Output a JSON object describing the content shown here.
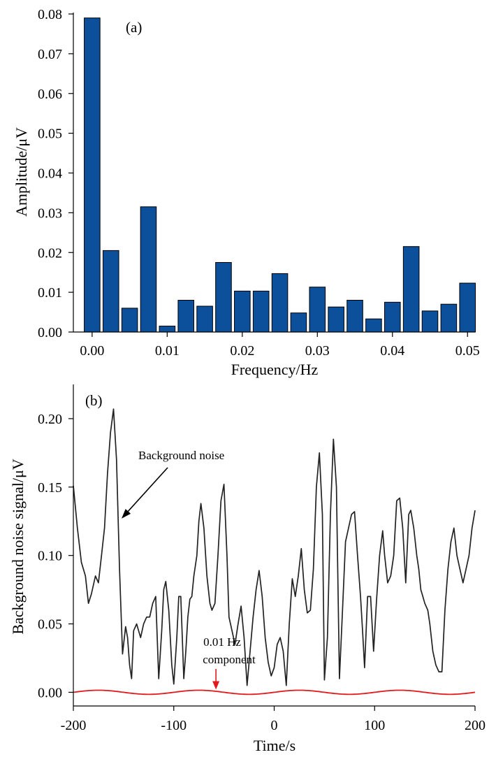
{
  "colors": {
    "bar_fill": "#0c4f9a",
    "bar_stroke": "#000000",
    "noise_line": "#222222",
    "component_line": "#e31a1c",
    "arrow_black": "#000000",
    "arrow_red": "#e31a1c"
  },
  "chart_data": [
    {
      "type": "bar",
      "panel_label": "(a)",
      "xlabel": "Frequency/Hz",
      "ylabel": "Amplitude/μV",
      "xlim": [
        -0.0025,
        0.051
      ],
      "ylim": [
        0,
        0.08
      ],
      "xticks": [
        0.0,
        0.01,
        0.02,
        0.03,
        0.04,
        0.05
      ],
      "xtick_labels": [
        "0.00",
        "0.01",
        "0.02",
        "0.03",
        "0.04",
        "0.05"
      ],
      "yticks": [
        0.0,
        0.01,
        0.02,
        0.03,
        0.04,
        0.05,
        0.06,
        0.07,
        0.08
      ],
      "ytick_labels": [
        "0.00",
        "0.01",
        "0.02",
        "0.03",
        "0.04",
        "0.05",
        "0.06",
        "0.07",
        "0.08"
      ],
      "bar_width": 0.0021,
      "x": [
        0.0,
        0.0025,
        0.005,
        0.0075,
        0.01,
        0.0125,
        0.015,
        0.0175,
        0.02,
        0.0225,
        0.025,
        0.0275,
        0.03,
        0.0325,
        0.035,
        0.0375,
        0.04,
        0.0425,
        0.045,
        0.0475,
        0.05
      ],
      "values": [
        0.079,
        0.0205,
        0.006,
        0.0315,
        0.0015,
        0.008,
        0.0065,
        0.0175,
        0.0103,
        0.0103,
        0.0147,
        0.0048,
        0.0113,
        0.0063,
        0.008,
        0.0033,
        0.0075,
        0.0215,
        0.0053,
        0.007,
        0.0123
      ]
    },
    {
      "type": "line",
      "panel_label": "(b)",
      "xlabel": "Time/s",
      "ylabel": "Background noise signal/μV",
      "xlim": [
        -200,
        200
      ],
      "ylim": [
        -0.01,
        0.225
      ],
      "xticks": [
        -200,
        -100,
        0,
        100,
        200
      ],
      "xtick_labels": [
        "-200",
        "-100",
        "0",
        "100",
        "200"
      ],
      "yticks": [
        0.0,
        0.05,
        0.1,
        0.15,
        0.2
      ],
      "ytick_labels": [
        "0.00",
        "0.05",
        "0.10",
        "0.15",
        "0.20"
      ],
      "series": [
        {
          "name": "Background noise",
          "x": [
            -200,
            -196,
            -192,
            -188,
            -185,
            -182,
            -178,
            -175,
            -172,
            -169,
            -166,
            -163,
            -160,
            -157,
            -154,
            -151,
            -148,
            -146,
            -144,
            -142,
            -140,
            -137,
            -135,
            -133,
            -130,
            -127,
            -124,
            -121,
            -118,
            -115,
            -112,
            -110,
            -108,
            -105,
            -102,
            -100,
            -97,
            -95,
            -93,
            -90,
            -88,
            -86,
            -84,
            -82,
            -80,
            -77,
            -75,
            -73,
            -70,
            -67,
            -64,
            -62,
            -59,
            -56,
            -53,
            -50,
            -47,
            -45,
            -42,
            -39,
            -36,
            -33,
            -30,
            -27,
            -24,
            -21,
            -18,
            -15,
            -12,
            -9,
            -6,
            -3,
            0,
            3,
            6,
            9,
            12,
            15,
            18,
            21,
            24,
            27,
            30,
            33,
            36,
            39,
            42,
            45,
            48,
            50,
            53,
            56,
            59,
            62,
            65,
            68,
            71,
            74,
            77,
            80,
            83,
            86,
            88,
            90,
            93,
            96,
            99,
            102,
            105,
            108,
            110,
            113,
            116,
            119,
            122,
            125,
            128,
            131,
            134,
            136,
            139,
            142,
            144,
            146,
            148,
            150,
            153,
            155,
            158,
            161,
            164,
            167,
            170,
            173,
            176,
            179,
            182,
            185,
            188,
            191,
            194,
            197,
            200
          ],
          "values": [
            0.151,
            0.12,
            0.095,
            0.085,
            0.065,
            0.072,
            0.085,
            0.08,
            0.1,
            0.12,
            0.16,
            0.19,
            0.207,
            0.17,
            0.09,
            0.028,
            0.048,
            0.04,
            0.02,
            0.01,
            0.045,
            0.05,
            0.045,
            0.04,
            0.05,
            0.055,
            0.055,
            0.065,
            0.07,
            0.01,
            0.045,
            0.075,
            0.081,
            0.06,
            0.02,
            0.006,
            0.04,
            0.07,
            0.07,
            0.01,
            0.03,
            0.055,
            0.068,
            0.07,
            0.085,
            0.1,
            0.125,
            0.138,
            0.12,
            0.085,
            0.065,
            0.06,
            0.065,
            0.1,
            0.14,
            0.152,
            0.1,
            0.055,
            0.045,
            0.035,
            0.05,
            0.063,
            0.04,
            0.005,
            0.03,
            0.055,
            0.075,
            0.089,
            0.07,
            0.04,
            0.022,
            0.012,
            0.018,
            0.035,
            0.04,
            0.03,
            0.005,
            0.05,
            0.083,
            0.07,
            0.085,
            0.105,
            0.075,
            0.058,
            0.06,
            0.09,
            0.15,
            0.175,
            0.13,
            0.009,
            0.04,
            0.13,
            0.185,
            0.15,
            0.01,
            0.06,
            0.11,
            0.12,
            0.13,
            0.132,
            0.1,
            0.07,
            0.045,
            0.018,
            0.07,
            0.07,
            0.03,
            0.068,
            0.1,
            0.118,
            0.1,
            0.08,
            0.085,
            0.1,
            0.14,
            0.142,
            0.12,
            0.08,
            0.13,
            0.133,
            0.12,
            0.1,
            0.09,
            0.075,
            0.07,
            0.065,
            0.06,
            0.05,
            0.03,
            0.02,
            0.015,
            0.015,
            0.06,
            0.09,
            0.11,
            0.12,
            0.1,
            0.09,
            0.08,
            0.09,
            0.1,
            0.12,
            0.133
          ]
        },
        {
          "name": "0.01 Hz component",
          "function": "0.0015*sin(2*pi*0.01*t)",
          "amplitude": 0.0015,
          "frequency": 0.01
        }
      ],
      "annotations": [
        {
          "text": "Background noise",
          "points_to_x": -152,
          "points_to_y": 0.127
        },
        {
          "text_lines": [
            "0.01 Hz",
            "component"
          ],
          "points_to_x": -58,
          "points_to_y": 0.002
        }
      ]
    }
  ]
}
